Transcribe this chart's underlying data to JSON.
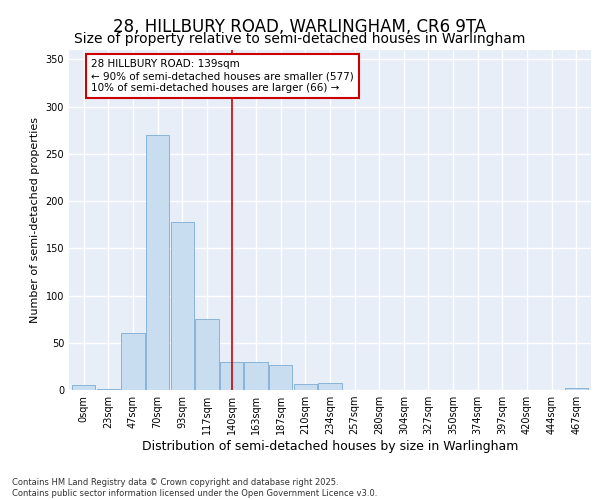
{
  "title1": "28, HILLBURY ROAD, WARLINGHAM, CR6 9TA",
  "title2": "Size of property relative to semi-detached houses in Warlingham",
  "xlabel": "Distribution of semi-detached houses by size in Warlingham",
  "ylabel": "Number of semi-detached properties",
  "categories": [
    "0sqm",
    "23sqm",
    "47sqm",
    "70sqm",
    "93sqm",
    "117sqm",
    "140sqm",
    "163sqm",
    "187sqm",
    "210sqm",
    "234sqm",
    "257sqm",
    "280sqm",
    "304sqm",
    "327sqm",
    "350sqm",
    "374sqm",
    "397sqm",
    "420sqm",
    "444sqm",
    "467sqm"
  ],
  "values": [
    5,
    1,
    60,
    270,
    178,
    75,
    30,
    30,
    27,
    6,
    7,
    0,
    0,
    0,
    0,
    0,
    0,
    0,
    0,
    0,
    2
  ],
  "bar_color": "#c9ddf0",
  "bar_edge_color": "#7bacd4",
  "property_line_x": 6.0,
  "property_line_color": "#cc0000",
  "annotation_text": "28 HILLBURY ROAD: 139sqm\n← 90% of semi-detached houses are smaller (577)\n10% of semi-detached houses are larger (66) →",
  "annotation_box_color": "#cc0000",
  "background_color": "#e8eef8",
  "grid_color": "#ffffff",
  "ylim": [
    0,
    360
  ],
  "yticks": [
    0,
    50,
    100,
    150,
    200,
    250,
    300,
    350
  ],
  "footer_text": "Contains HM Land Registry data © Crown copyright and database right 2025.\nContains public sector information licensed under the Open Government Licence v3.0.",
  "title1_fontsize": 12,
  "title2_fontsize": 10,
  "xlabel_fontsize": 9,
  "ylabel_fontsize": 8,
  "tick_fontsize": 7,
  "footer_fontsize": 6
}
